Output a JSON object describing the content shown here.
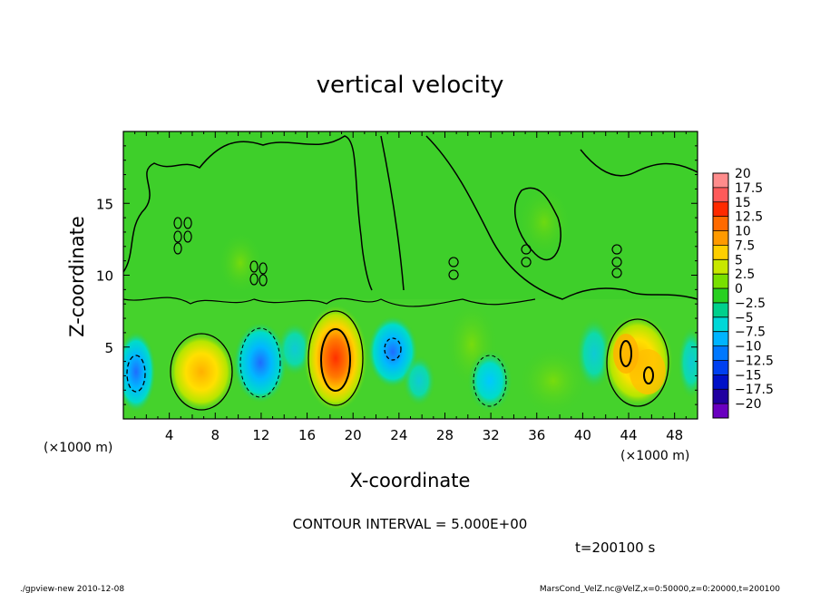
{
  "chart_data": {
    "type": "heatmap",
    "title": "vertical velocity",
    "xlabel": "X-coordinate",
    "ylabel": "Z-coordinate",
    "x_unit": "(×1000 m)",
    "y_unit": "(×1000 m)",
    "xlim": [
      0,
      50
    ],
    "ylim": [
      0,
      20
    ],
    "x_ticks": [
      4,
      8,
      12,
      16,
      20,
      24,
      28,
      32,
      36,
      40,
      44,
      48
    ],
    "y_ticks": [
      5,
      10,
      15
    ],
    "contour_interval_text": "CONTOUR INTERVAL = 5.000E+00",
    "time_text": "t=200100 s",
    "colorbar": {
      "levels": [
        "20",
        "17.5",
        "15",
        "12.5",
        "10",
        "7.5",
        "5",
        "2.5",
        "0",
        "−2.5",
        "−5",
        "−7.5",
        "−10",
        "−12.5",
        "−15",
        "−17.5",
        "−20"
      ],
      "colors": [
        "#ff8c8c",
        "#ff5a5a",
        "#ff2a00",
        "#ff6a00",
        "#ff9a00",
        "#ffcf00",
        "#c8e800",
        "#78e000",
        "#28d020",
        "#00d08c",
        "#00d8d8",
        "#00b4ff",
        "#0078ff",
        "#0040f0",
        "#0010c8",
        "#2000a0",
        "#6a00c0"
      ]
    },
    "features": [
      {
        "x": 18.7,
        "z": 4.8,
        "w": 9.0,
        "kind": "updraft"
      },
      {
        "x": 7.5,
        "z": 2.4,
        "w": 5.5,
        "kind": "updraft"
      },
      {
        "x": 44.2,
        "z": 4.3,
        "w": 6.5,
        "kind": "updraft"
      },
      {
        "x": 46.0,
        "z": 3.0,
        "w": 7.0,
        "kind": "updraft"
      },
      {
        "x": 1.0,
        "z": 3.0,
        "w": -8.0,
        "kind": "downdraft"
      },
      {
        "x": 12.5,
        "z": 4.0,
        "w": -6.0,
        "kind": "downdraft"
      },
      {
        "x": 23.8,
        "z": 4.8,
        "w": -7.0,
        "kind": "downdraft"
      },
      {
        "x": 31.5,
        "z": 3.0,
        "w": -6.0,
        "kind": "downdraft"
      }
    ]
  },
  "footer": {
    "left": "./gpview-new  2010-12-08",
    "right": "MarsCond_VelZ.nc@VelZ,x=0:50000,z=0:20000,t=200100"
  }
}
